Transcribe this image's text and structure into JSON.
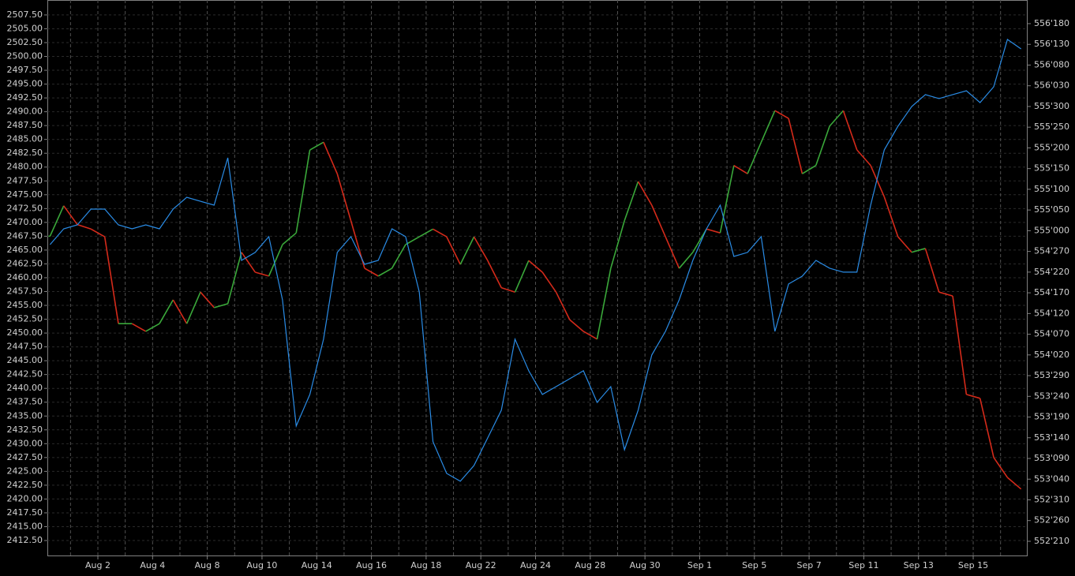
{
  "chart_data": {
    "type": "line",
    "x": [
      -0.75,
      -0.25,
      0.25,
      0.75,
      1.25,
      1.75,
      2.25,
      2.75,
      3.25,
      3.75,
      4.25,
      4.75,
      5.25,
      5.75,
      6.25,
      6.75,
      7.25,
      7.75,
      8.25,
      8.75,
      9.25,
      9.75,
      10.25,
      10.75,
      11.25,
      11.75,
      12.25,
      12.75,
      13.25,
      13.75,
      14.25,
      14.75,
      15.25,
      15.75,
      16.25,
      16.75,
      17.25,
      17.75,
      18.25,
      18.75,
      19.25,
      19.75,
      20.25,
      20.75,
      21.25,
      21.75,
      22.25,
      22.75,
      23.25,
      23.75,
      24.25,
      24.75,
      25.25,
      25.75,
      26.25,
      26.75,
      27.25,
      27.75,
      28.25,
      28.75,
      29.25,
      29.75,
      30.25,
      30.75,
      31.25,
      31.75,
      32.25,
      32.75,
      33.25,
      33.75,
      34.25,
      34.75
    ],
    "xlim": [
      -0.847,
      34.99
    ],
    "xgrid": [
      0,
      1,
      2,
      3,
      4,
      5,
      6,
      7,
      8,
      9,
      10,
      11,
      12,
      13,
      14,
      15,
      16,
      17,
      18,
      19,
      20,
      21,
      22,
      23,
      24,
      25,
      26,
      27,
      28,
      29,
      30,
      31,
      32,
      33,
      34
    ],
    "xticks": [
      {
        "value": 1,
        "label": "Aug 2"
      },
      {
        "value": 3,
        "label": "Aug 4"
      },
      {
        "value": 5,
        "label": "Aug 8"
      },
      {
        "value": 7,
        "label": "Aug 10"
      },
      {
        "value": 9,
        "label": "Aug 14"
      },
      {
        "value": 11,
        "label": "Aug 16"
      },
      {
        "value": 13,
        "label": "Aug 18"
      },
      {
        "value": 15,
        "label": "Aug 22"
      },
      {
        "value": 17,
        "label": "Aug 24"
      },
      {
        "value": 19,
        "label": "Aug 28"
      },
      {
        "value": 21,
        "label": "Aug 30"
      },
      {
        "value": 23,
        "label": "Sep 1"
      },
      {
        "value": 25,
        "label": "Sep 5"
      },
      {
        "value": 27,
        "label": "Sep 7"
      },
      {
        "value": 29,
        "label": "Sep 11"
      },
      {
        "value": 31,
        "label": "Sep 13"
      },
      {
        "value": 33,
        "label": "Sep 15"
      }
    ],
    "ylim": [
      2409.65,
      2510.2
    ],
    "yticks": [
      {
        "value": 2507.5,
        "label": "2507.50"
      },
      {
        "value": 2505,
        "label": "2505.00"
      },
      {
        "value": 2502.5,
        "label": "2502.50"
      },
      {
        "value": 2500,
        "label": "2500.00"
      },
      {
        "value": 2497.5,
        "label": "2497.50"
      },
      {
        "value": 2495,
        "label": "2495.00"
      },
      {
        "value": 2492.5,
        "label": "2492.50"
      },
      {
        "value": 2490,
        "label": "2490.00"
      },
      {
        "value": 2487.5,
        "label": "2487.50"
      },
      {
        "value": 2485,
        "label": "2485.00"
      },
      {
        "value": 2482.5,
        "label": "2482.50"
      },
      {
        "value": 2480,
        "label": "2480.00"
      },
      {
        "value": 2477.5,
        "label": "2477.50"
      },
      {
        "value": 2475,
        "label": "2475.00"
      },
      {
        "value": 2472.5,
        "label": "2472.50"
      },
      {
        "value": 2470,
        "label": "2470.00"
      },
      {
        "value": 2467.5,
        "label": "2467.50"
      },
      {
        "value": 2465,
        "label": "2465.00"
      },
      {
        "value": 2462.5,
        "label": "2462.50"
      },
      {
        "value": 2460,
        "label": "2460.00"
      },
      {
        "value": 2457.5,
        "label": "2457.50"
      },
      {
        "value": 2455,
        "label": "2455.00"
      },
      {
        "value": 2452.5,
        "label": "2452.50"
      },
      {
        "value": 2450,
        "label": "2450.00"
      },
      {
        "value": 2447.5,
        "label": "2447.50"
      },
      {
        "value": 2445,
        "label": "2445.00"
      },
      {
        "value": 2442.5,
        "label": "2442.50"
      },
      {
        "value": 2440,
        "label": "2440.00"
      },
      {
        "value": 2437.5,
        "label": "2437.50"
      },
      {
        "value": 2435,
        "label": "2435.00"
      },
      {
        "value": 2432.5,
        "label": "2432.50"
      },
      {
        "value": 2430,
        "label": "2430.00"
      },
      {
        "value": 2427.5,
        "label": "2427.50"
      },
      {
        "value": 2425,
        "label": "2425.00"
      },
      {
        "value": 2422.5,
        "label": "2422.50"
      },
      {
        "value": 2420,
        "label": "2420.00"
      },
      {
        "value": 2417.5,
        "label": "2417.50"
      },
      {
        "value": 2415,
        "label": "2415.00"
      },
      {
        "value": 2412.5,
        "label": "2412.50"
      }
    ],
    "y2lim": [
      552.543,
      556.741
    ],
    "y2ticks": [
      {
        "value": 556.5625,
        "label": "556'180"
      },
      {
        "value": 556.40625,
        "label": "556'130"
      },
      {
        "value": 556.25,
        "label": "556'080"
      },
      {
        "value": 556.09375,
        "label": "556'030"
      },
      {
        "value": 555.9375,
        "label": "555'300"
      },
      {
        "value": 555.78125,
        "label": "555'250"
      },
      {
        "value": 555.625,
        "label": "555'200"
      },
      {
        "value": 555.46875,
        "label": "555'150"
      },
      {
        "value": 555.3125,
        "label": "555'100"
      },
      {
        "value": 555.15625,
        "label": "555'050"
      },
      {
        "value": 555,
        "label": "555'000"
      },
      {
        "value": 554.84375,
        "label": "554'270"
      },
      {
        "value": 554.6875,
        "label": "554'220"
      },
      {
        "value": 554.53125,
        "label": "554'170"
      },
      {
        "value": 554.375,
        "label": "554'120"
      },
      {
        "value": 554.21875,
        "label": "554'070"
      },
      {
        "value": 554.0625,
        "label": "554'020"
      },
      {
        "value": 553.90625,
        "label": "553'290"
      },
      {
        "value": 553.75,
        "label": "553'240"
      },
      {
        "value": 553.59375,
        "label": "553'190"
      },
      {
        "value": 553.4375,
        "label": "553'140"
      },
      {
        "value": 553.28125,
        "label": "553'090"
      },
      {
        "value": 553.125,
        "label": "553'040"
      },
      {
        "value": 552.96875,
        "label": "552'310"
      },
      {
        "value": 552.8125,
        "label": "552'260"
      },
      {
        "value": 552.65625,
        "label": "552'210"
      }
    ],
    "grid": true,
    "series": [
      {
        "up_color": "#3aa83a",
        "down_color": "#d42a1a",
        "values": [
          2467.5,
          2473,
          2469.6,
          2468.8,
          2467.4,
          2451.7,
          2451.7,
          2450.3,
          2451.7,
          2456,
          2451.7,
          2457.4,
          2454.6,
          2455.3,
          2464.6,
          2461,
          2460.3,
          2466,
          2468.1,
          2483.1,
          2484.5,
          2478.8,
          2470.3,
          2461.7,
          2460.3,
          2461.7,
          2466,
          2467.4,
          2468.8,
          2467.4,
          2462.4,
          2467.4,
          2463.1,
          2458.2,
          2457.4,
          2463.1,
          2461,
          2457.4,
          2452.4,
          2450.3,
          2448.9,
          2461.7,
          2470.3,
          2477.4,
          2473.1,
          2467.4,
          2461.7,
          2464.6,
          2468.8,
          2468.1,
          2480.3,
          2478.8,
          2484.5,
          2490.2,
          2488.8,
          2478.8,
          2480.3,
          2487.4,
          2490.2,
          2483.1,
          2480.3,
          2474.6,
          2467.4,
          2464.6,
          2465.3,
          2457.4,
          2456.7,
          2438.9,
          2438.2,
          2427.5,
          2423.9,
          2421.8
        ]
      },
      {
        "color": "#2a8ce6",
        "axis": "y2",
        "values": [
          554.895,
          555.014,
          555.044,
          555.163,
          555.163,
          555.044,
          555.014,
          555.044,
          555.014,
          555.163,
          555.252,
          555.222,
          555.193,
          555.55,
          554.776,
          554.836,
          554.955,
          554.478,
          553.526,
          553.764,
          554.181,
          554.836,
          554.955,
          554.746,
          554.776,
          555.014,
          554.955,
          554.538,
          553.407,
          553.168,
          553.109,
          553.228,
          553.436,
          553.645,
          554.181,
          553.943,
          553.764,
          553.823,
          553.883,
          553.943,
          553.704,
          553.823,
          553.347,
          553.645,
          554.062,
          554.24,
          554.478,
          554.776,
          555.014,
          555.193,
          554.806,
          554.836,
          554.955,
          554.24,
          554.598,
          554.657,
          554.776,
          554.717,
          554.687,
          554.687,
          555.193,
          555.61,
          555.788,
          555.937,
          556.027,
          555.997,
          556.027,
          556.056,
          555.967,
          556.086,
          556.443,
          556.372
        ]
      }
    ]
  }
}
